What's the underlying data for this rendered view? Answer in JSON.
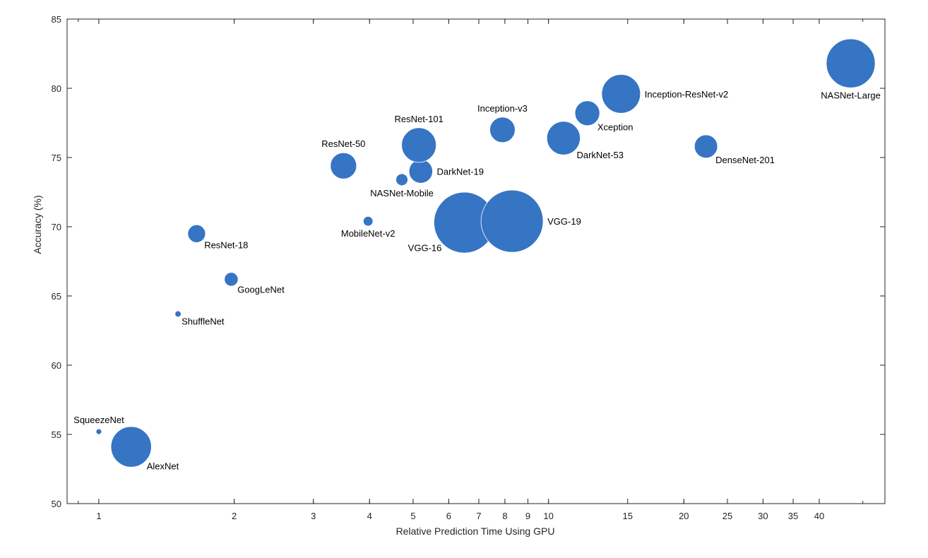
{
  "chart_data": {
    "type": "scatter",
    "xlabel": "Relative Prediction Time Using GPU",
    "ylabel": "Accuracy (%)",
    "xscale": "log",
    "xlim": [
      0.85,
      56
    ],
    "ylim": [
      50,
      85
    ],
    "x_ticks": [
      1,
      2,
      3,
      4,
      5,
      6,
      7,
      8,
      9,
      10,
      15,
      20,
      25,
      30,
      35,
      40
    ],
    "y_ticks": [
      50,
      55,
      60,
      65,
      70,
      75,
      80,
      85
    ],
    "grid": false,
    "bubble_color": "#3674c4",
    "axis_color": "#262626",
    "points": [
      {
        "label": "SqueezeNet",
        "x": 1.0,
        "y": 55.2,
        "size": 1.2,
        "label_pos": "top"
      },
      {
        "label": "AlexNet",
        "x": 1.18,
        "y": 54.1,
        "size": 61,
        "label_pos": "bottom-right"
      },
      {
        "label": "ShuffleNet",
        "x": 1.5,
        "y": 63.7,
        "size": 1.4,
        "label_pos": "bottom-right"
      },
      {
        "label": "ResNet-18",
        "x": 1.65,
        "y": 69.5,
        "size": 11.7,
        "label_pos": "bottom-right"
      },
      {
        "label": "GoogLeNet",
        "x": 1.97,
        "y": 66.2,
        "size": 7.0,
        "label_pos": "bottom-right"
      },
      {
        "label": "ResNet-50",
        "x": 3.5,
        "y": 74.4,
        "size": 25.6,
        "label_pos": "top"
      },
      {
        "label": "MobileNet-v2",
        "x": 3.97,
        "y": 70.4,
        "size": 3.5,
        "label_pos": "bottom"
      },
      {
        "label": "NASNet-Mobile",
        "x": 4.72,
        "y": 73.4,
        "size": 5.3,
        "label_pos": "bottom"
      },
      {
        "label": "DarkNet-19",
        "x": 5.2,
        "y": 74.0,
        "size": 20.8,
        "label_pos": "right"
      },
      {
        "label": "ResNet-101",
        "x": 5.15,
        "y": 75.9,
        "size": 44.6,
        "label_pos": "top"
      },
      {
        "label": "VGG-16",
        "x": 6.5,
        "y": 70.3,
        "size": 138,
        "label_pos": "bottom-left"
      },
      {
        "label": "VGG-19",
        "x": 8.3,
        "y": 70.4,
        "size": 144,
        "label_pos": "right"
      },
      {
        "label": "Inception-v3",
        "x": 7.9,
        "y": 77.0,
        "size": 23.9,
        "label_pos": "top"
      },
      {
        "label": "DarkNet-53",
        "x": 10.8,
        "y": 76.4,
        "size": 41.6,
        "label_pos": "bottom-right"
      },
      {
        "label": "Xception",
        "x": 12.2,
        "y": 78.2,
        "size": 22.9,
        "label_pos": "bottom-right"
      },
      {
        "label": "Inception-ResNet-v2",
        "x": 14.5,
        "y": 79.6,
        "size": 55.9,
        "label_pos": "right"
      },
      {
        "label": "DenseNet-201",
        "x": 22.4,
        "y": 75.8,
        "size": 20.0,
        "label_pos": "bottom-right"
      },
      {
        "label": "NASNet-Large",
        "x": 47,
        "y": 81.8,
        "size": 88.9,
        "label_pos": "bottom"
      }
    ]
  }
}
